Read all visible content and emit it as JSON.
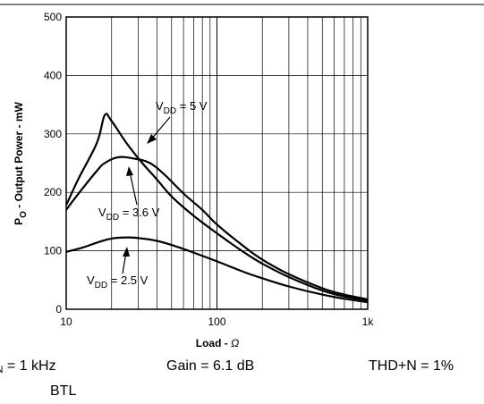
{
  "chart_data": {
    "type": "line",
    "xscale": "log",
    "xlim": [
      10,
      1000
    ],
    "ylim": [
      0,
      500
    ],
    "grid": true,
    "ylabel": {
      "main": "P",
      "sub": "O",
      "rest": " - Output Power - mW"
    },
    "xlabel": {
      "main": "Load - ",
      "unit": "Ω"
    },
    "xticks": [
      {
        "value": 10,
        "label": "10"
      },
      {
        "value": 100,
        "label": "100"
      },
      {
        "value": 1000,
        "label": "1k"
      }
    ],
    "yticks": [
      {
        "value": 0,
        "label": "0"
      },
      {
        "value": 100,
        "label": "100"
      },
      {
        "value": 200,
        "label": "200"
      },
      {
        "value": 300,
        "label": "300"
      },
      {
        "value": 400,
        "label": "400"
      },
      {
        "value": 500,
        "label": "500"
      }
    ],
    "series": [
      {
        "label": {
          "pre": "V",
          "sub": "DD",
          "post": " = 5 V"
        },
        "points": [
          [
            10,
            178
          ],
          [
            12,
            222
          ],
          [
            16,
            285
          ],
          [
            18,
            332
          ],
          [
            20,
            322
          ],
          [
            25,
            285
          ],
          [
            32,
            250
          ],
          [
            40,
            222
          ],
          [
            50,
            193
          ],
          [
            70,
            160
          ],
          [
            100,
            130
          ],
          [
            150,
            98
          ],
          [
            200,
            78
          ],
          [
            300,
            55
          ],
          [
            500,
            32
          ],
          [
            700,
            22
          ],
          [
            1000,
            15
          ]
        ]
      },
      {
        "label": {
          "pre": "V",
          "sub": "DD",
          "post": " = 3.6 V"
        },
        "points": [
          [
            10,
            170
          ],
          [
            12,
            197
          ],
          [
            16,
            237
          ],
          [
            18,
            250
          ],
          [
            22,
            260
          ],
          [
            28,
            258
          ],
          [
            36,
            250
          ],
          [
            45,
            230
          ],
          [
            60,
            198
          ],
          [
            80,
            170
          ],
          [
            100,
            145
          ],
          [
            150,
            108
          ],
          [
            200,
            85
          ],
          [
            300,
            60
          ],
          [
            500,
            36
          ],
          [
            700,
            25
          ],
          [
            1000,
            17
          ]
        ]
      },
      {
        "label": {
          "pre": "V",
          "sub": "DD",
          "post": " = 2.5 V"
        },
        "points": [
          [
            10,
            98
          ],
          [
            13,
            106
          ],
          [
            16,
            114
          ],
          [
            20,
            121
          ],
          [
            26,
            123
          ],
          [
            32,
            121
          ],
          [
            40,
            117
          ],
          [
            50,
            110
          ],
          [
            70,
            97
          ],
          [
            100,
            82
          ],
          [
            150,
            64
          ],
          [
            200,
            53
          ],
          [
            300,
            39
          ],
          [
            500,
            25
          ],
          [
            700,
            18
          ],
          [
            1000,
            12
          ]
        ]
      }
    ],
    "conditions": [
      {
        "pre": "f",
        "sub": "IN",
        "post": " = 1 kHz"
      },
      {
        "text": "BTL"
      },
      {
        "text": "Gain = 6.1 dB"
      },
      {
        "text": "THD+N = 1%"
      }
    ]
  }
}
